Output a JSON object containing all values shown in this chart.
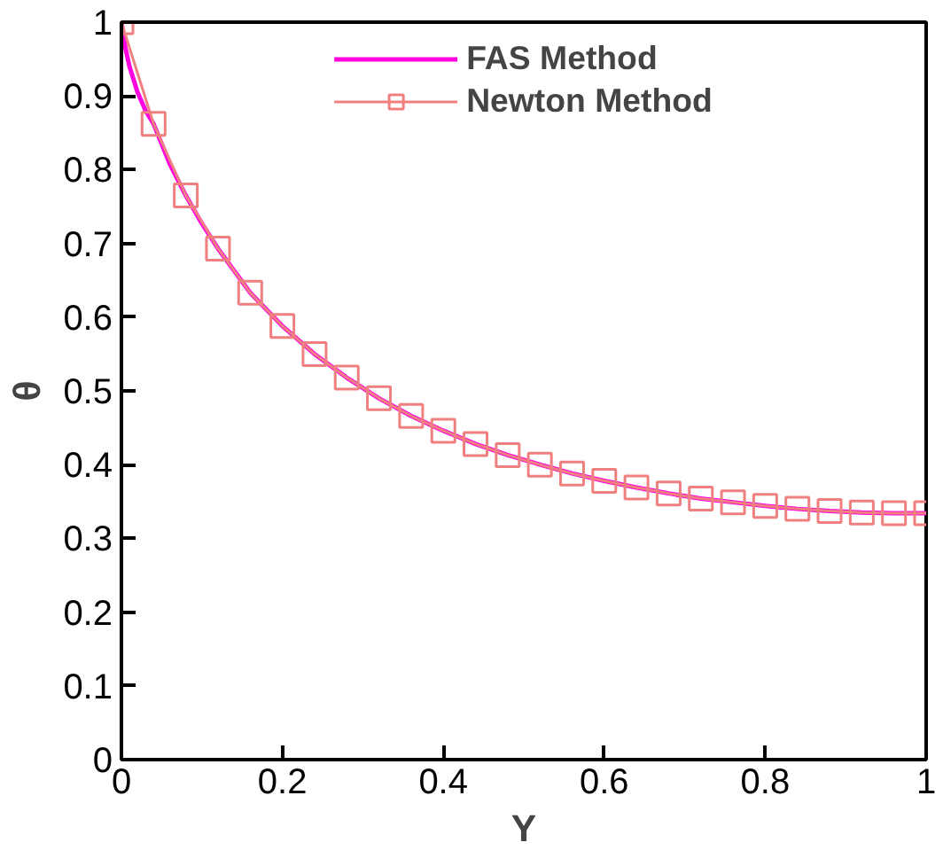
{
  "chart_data": {
    "type": "line",
    "xlabel": "Y",
    "ylabel": "θ",
    "xlim": [
      0,
      1
    ],
    "ylim": [
      0,
      1
    ],
    "xticks": [
      0,
      0.2,
      0.4,
      0.6,
      0.8,
      1
    ],
    "yticks": [
      0,
      0.1,
      0.2,
      0.3,
      0.4,
      0.5,
      0.6,
      0.7,
      0.8,
      0.9,
      1
    ],
    "grid": false,
    "legend": "top",
    "line_style": "solid",
    "series": [
      {
        "name": "FAS Method",
        "color": "#ff00e0",
        "marker": "none",
        "x": [
          0,
          0.005,
          0.01,
          0.02,
          0.03,
          0.04,
          0.06,
          0.08,
          0.1,
          0.12,
          0.16,
          0.2,
          0.24,
          0.28,
          0.32,
          0.36,
          0.4,
          0.44,
          0.48,
          0.52,
          0.56,
          0.6,
          0.64,
          0.68,
          0.72,
          0.76,
          0.8,
          0.84,
          0.88,
          0.92,
          0.96,
          1
        ],
        "values": [
          1.0,
          0.965,
          0.94,
          0.905,
          0.88,
          0.862,
          0.808,
          0.765,
          0.727,
          0.693,
          0.633,
          0.588,
          0.55,
          0.518,
          0.49,
          0.466,
          0.446,
          0.428,
          0.413,
          0.4,
          0.388,
          0.378,
          0.369,
          0.361,
          0.354,
          0.349,
          0.344,
          0.34,
          0.337,
          0.335,
          0.334,
          0.334
        ]
      },
      {
        "name": "Newton Method",
        "color": "#f08080",
        "marker": "square",
        "x": [
          0,
          0.04,
          0.08,
          0.12,
          0.16,
          0.2,
          0.24,
          0.28,
          0.32,
          0.36,
          0.4,
          0.44,
          0.48,
          0.52,
          0.56,
          0.6,
          0.64,
          0.68,
          0.72,
          0.76,
          0.8,
          0.84,
          0.88,
          0.92,
          0.96,
          1
        ],
        "values": [
          1.0,
          0.862,
          0.765,
          0.693,
          0.633,
          0.588,
          0.55,
          0.518,
          0.49,
          0.466,
          0.446,
          0.428,
          0.413,
          0.4,
          0.388,
          0.378,
          0.369,
          0.361,
          0.354,
          0.349,
          0.344,
          0.34,
          0.337,
          0.335,
          0.334,
          0.334
        ]
      }
    ]
  }
}
